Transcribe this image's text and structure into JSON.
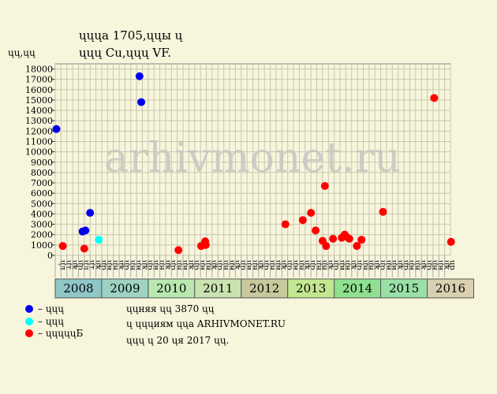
{
  "header": {
    "title_line1": "ųųųa 1705,ųųы ų",
    "title_line2": "ųųų Cu,ųųų VF.",
    "y_unit": "ųų,ųų"
  },
  "watermark": "arhivmonet.ru",
  "info": {
    "line1": "ųųняя ųų 3870 ųų",
    "line2": "ų ųųųиям ųųa ARHIVMONET.RU",
    "line3": "ųųų ų 20 ųя 2017 ųų."
  },
  "legend": [
    {
      "label": "– ųųų",
      "color": "#0000ee"
    },
    {
      "label": "– ųųų",
      "color": "#00ffff"
    },
    {
      "label": "– ųųųųųБ",
      "color": "#ff0000"
    }
  ],
  "chart_data": {
    "type": "scatter",
    "ylim": [
      0,
      18500
    ],
    "yticks": [
      0,
      1000,
      2000,
      3000,
      4000,
      5000,
      6000,
      7000,
      8000,
      9000,
      10000,
      11000,
      12000,
      13000,
      14000,
      15000,
      16000,
      17000,
      18000
    ],
    "years": [
      {
        "label": "2008",
        "color": "#8fc7c7"
      },
      {
        "label": "2009",
        "color": "#9ed3c4"
      },
      {
        "label": "2010",
        "color": "#b8e8b0"
      },
      {
        "label": "2011",
        "color": "#c9e3b0"
      },
      {
        "label": "2012",
        "color": "#c7c99b"
      },
      {
        "label": "2013",
        "color": "#c3e690"
      },
      {
        "label": "2014",
        "color": "#8fe08f"
      },
      {
        "label": "2015",
        "color": "#98e0a8"
      },
      {
        "label": "2016",
        "color": "#d9d0b0"
      }
    ],
    "period_labels": [
      "ųл",
      "ųт",
      "ųк",
      "ųр",
      "ųл",
      "ųт",
      "ųк",
      "ųр",
      "ųн",
      "ųн",
      "ųк",
      "ųр",
      "ųн",
      "ųн",
      "ųк",
      "ųр",
      "ųн",
      "ųн",
      "ųк",
      "ųр",
      "ųн",
      "ųн",
      "ųк",
      "ųр",
      "ųн",
      "ųн",
      "ųк",
      "ųр",
      "ųн",
      "ųн",
      "ųк",
      "ųр",
      "ųн",
      "ųн",
      "ųк",
      "ųр",
      "ųн",
      "ųн",
      "ųк",
      "ųр",
      "ųн",
      "ųн",
      "ųк",
      "ųр",
      "ųн",
      "ųн",
      "ųк",
      "ųр",
      "ųн",
      "ųн",
      "ųк",
      "ųр",
      "ųн",
      "ųн",
      "ųк",
      "ųр",
      "ųн",
      "ųн",
      "ųк",
      "ųр",
      "ųн",
      "ųн",
      "ųк",
      "ųр",
      "ųн",
      "ųн",
      "ųк",
      "ųр"
    ],
    "series": [
      {
        "name": "– ųųų",
        "color": "#0000ee",
        "points": [
          {
            "x": 0.2,
            "y": 12200
          },
          {
            "x": 4.7,
            "y": 2300
          },
          {
            "x": 5.2,
            "y": 2400
          },
          {
            "x": 6.0,
            "y": 4100
          },
          {
            "x": 14.5,
            "y": 17300
          },
          {
            "x": 14.8,
            "y": 14800
          }
        ]
      },
      {
        "name": "– ųųų",
        "color": "#00ffff",
        "points": [
          {
            "x": 7.5,
            "y": 1500
          }
        ]
      },
      {
        "name": "– ųųųųųБ",
        "color": "#ff0000",
        "points": [
          {
            "x": 1.3,
            "y": 900
          },
          {
            "x": 5.0,
            "y": 650
          },
          {
            "x": 21.2,
            "y": 500
          },
          {
            "x": 25.1,
            "y": 900
          },
          {
            "x": 25.8,
            "y": 1350
          },
          {
            "x": 25.9,
            "y": 1000
          },
          {
            "x": 39.6,
            "y": 3000
          },
          {
            "x": 42.6,
            "y": 3400
          },
          {
            "x": 44.0,
            "y": 4100
          },
          {
            "x": 44.8,
            "y": 2400
          },
          {
            "x": 46.0,
            "y": 1400
          },
          {
            "x": 46.4,
            "y": 6700
          },
          {
            "x": 46.6,
            "y": 900
          },
          {
            "x": 47.8,
            "y": 1600
          },
          {
            "x": 49.3,
            "y": 1700
          },
          {
            "x": 49.8,
            "y": 2000
          },
          {
            "x": 50.1,
            "y": 1800
          },
          {
            "x": 50.6,
            "y": 1600
          },
          {
            "x": 51.9,
            "y": 900
          },
          {
            "x": 52.7,
            "y": 1500
          },
          {
            "x": 56.4,
            "y": 4200
          },
          {
            "x": 65.2,
            "y": 15200
          },
          {
            "x": 68.1,
            "y": 1300
          }
        ]
      }
    ]
  }
}
